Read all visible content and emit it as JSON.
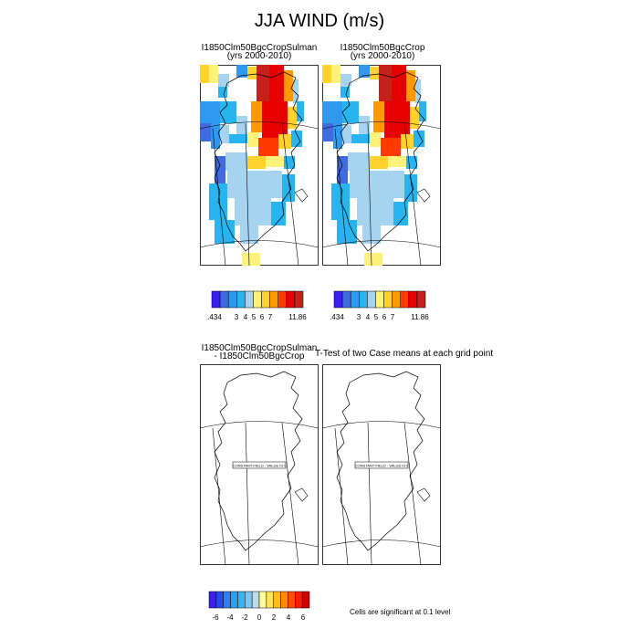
{
  "title": "JJA WIND (m/s)",
  "panels": [
    {
      "title_lines": [
        "I1850Clm50BgcCropSulman",
        "(yrs 2000-2010)"
      ]
    },
    {
      "title_lines": [
        "I1850Clm50BgcCrop",
        "(yrs 2000-2010)"
      ]
    },
    {
      "title_lines": [
        "I1850Clm50BgcCropSulman",
        " - I1850Clm50BgcCrop"
      ],
      "field_label": "CONSTANT FIELD - VALUE IS 0"
    },
    {
      "title_lines": [],
      "field_label": "CONSTANT FIELD - VALUE IS 0"
    }
  ],
  "ttest_title": "T-Test of two Case means at each grid point",
  "significance_note": "Cells are significant at 0.1 level",
  "colorbar_top": {
    "colors": [
      "#3a1ff0",
      "#3f6ae0",
      "#2f99ef",
      "#28b4ef",
      "#a6d3ef",
      "#fff27a",
      "#ffd22e",
      "#ff9a00",
      "#ff3a00",
      "#e70000",
      "#c5201c"
    ],
    "labels": [
      ".434",
      "3",
      "4",
      "5",
      "6",
      "7",
      "11.86"
    ]
  },
  "colorbar_bottom": {
    "colors": [
      "#3a1ff0",
      "#2b47ec",
      "#2f7ff0",
      "#2aa0ef",
      "#3ab4ee",
      "#7dc6ee",
      "#b9dcee",
      "#fff9a0",
      "#ffe25a",
      "#ffbd1a",
      "#ff8c00",
      "#ff4c00",
      "#ff1a00",
      "#d00000"
    ],
    "labels": [
      "-6",
      "-4",
      "-2",
      "0",
      "2",
      "4",
      "6"
    ]
  },
  "chart_data": [
    {
      "type": "heatmap",
      "title": "I1850Clm50BgcCropSulman (yrs 2000-2010)",
      "variable": "JJA WIND",
      "units": "m/s",
      "value_range": [
        0.434,
        11.86
      ],
      "levels": [
        3,
        4,
        5,
        6,
        7
      ]
    },
    {
      "type": "heatmap",
      "title": "I1850Clm50BgcCrop (yrs 2000-2010)",
      "variable": "JJA WIND",
      "units": "m/s",
      "value_range": [
        0.434,
        11.86
      ],
      "levels": [
        3,
        4,
        5,
        6,
        7
      ]
    },
    {
      "type": "heatmap",
      "title": "I1850Clm50BgcCropSulman - I1850Clm50BgcCrop",
      "constant_value": 0,
      "levels": [
        -6,
        -4,
        -2,
        0,
        2,
        4,
        6
      ]
    },
    {
      "type": "heatmap",
      "title": "T-Test of two Case means at each grid point",
      "constant_value": 0
    }
  ]
}
